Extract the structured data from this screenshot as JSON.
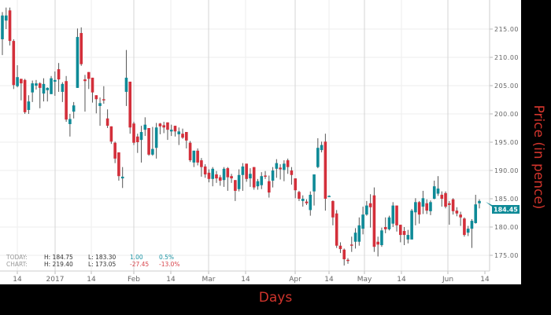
{
  "chart_data": {
    "type": "candlestick",
    "xlabel": "Days",
    "ylabel": "Price (in pence)",
    "ylim": [
      172,
      219
    ],
    "yticks": [
      "215.00",
      "210.00",
      "205.00",
      "200.00",
      "195.00",
      "190.00",
      "185.00",
      "180.00",
      "175.00"
    ],
    "xticks": [
      "14",
      "2017",
      "14",
      "Feb",
      "14",
      "Mar",
      "14",
      "Apr",
      "14",
      "May",
      "14",
      "Jun",
      "14"
    ],
    "grid": true,
    "colors": {
      "up": "#0e8a97",
      "down": "#d32f3a",
      "wick": "#555555",
      "axis_title": "#d0342c"
    },
    "last_price": "184.45",
    "candles_ohlc": [
      [
        213.2,
        218,
        210.4,
        217.4
      ],
      [
        216.5,
        218.8,
        215,
        217.4
      ],
      [
        218.3,
        218.8,
        212.1,
        212.9
      ],
      [
        212.9,
        213.2,
        204.4,
        205.1
      ],
      [
        204.9,
        208.6,
        204.7,
        206.5
      ],
      [
        206.2,
        206.2,
        202.4,
        205.4
      ],
      [
        206.0,
        206.2,
        200.0,
        200.3
      ],
      [
        200.7,
        203.3,
        200,
        202.2
      ],
      [
        203.8,
        205.9,
        202.1,
        205.4
      ],
      [
        205.0,
        206,
        204.3,
        205.4
      ],
      [
        205.4,
        205.6,
        201,
        204.6
      ],
      [
        203.6,
        206.3,
        202.2,
        205.3
      ],
      [
        204.2,
        204.7,
        202.2,
        204.6
      ],
      [
        203.5,
        206.7,
        203.5,
        206.3
      ],
      [
        205.7,
        207.5,
        203.2,
        206.0
      ],
      [
        207.9,
        209.0,
        203.9,
        206.1
      ],
      [
        203.9,
        205.6,
        202.1,
        205.3
      ],
      [
        205.8,
        206.7,
        198.6,
        199.0
      ],
      [
        198.2,
        200,
        196,
        199.1
      ],
      [
        200.4,
        202.1,
        199.2,
        201.5
      ],
      [
        204.6,
        215.1,
        204.6,
        213.6
      ],
      [
        214.3,
        215.3,
        208.5,
        208.8
      ],
      [
        206.1,
        206.9,
        200.4,
        205.8
      ],
      [
        207.4,
        207.4,
        204.4,
        206.2
      ],
      [
        206.4,
        206.4,
        202.0,
        203.8
      ],
      [
        203.3,
        203.3,
        200.1,
        202.6
      ],
      [
        201.4,
        202.9,
        197.9,
        201.9
      ],
      [
        202.6,
        204.9,
        201.8,
        202.4
      ],
      [
        199.2,
        200.8,
        197.5,
        197.9
      ],
      [
        197.8,
        197.8,
        194.7,
        195.1
      ],
      [
        194.9,
        195.1,
        191.3,
        192.1
      ],
      [
        193.2,
        193.2,
        188.2,
        189.0
      ],
      [
        188.6,
        190.6,
        186.9,
        188.9
      ],
      [
        203.9,
        211.3,
        201.4,
        206.4
      ],
      [
        205.7,
        205.7,
        196.5,
        197.6
      ],
      [
        198.3,
        198.6,
        194.5,
        194.9
      ],
      [
        196.0,
        196.5,
        193.1,
        195.0
      ],
      [
        195.4,
        197.9,
        191.4,
        196.8
      ],
      [
        197.2,
        199.4,
        196.1,
        198.1
      ],
      [
        197.5,
        197.5,
        192.6,
        192.8
      ],
      [
        192.8,
        197.7,
        192.6,
        193.8
      ],
      [
        194.0,
        198.4,
        192.1,
        197.6
      ],
      [
        198.3,
        198.4,
        196.4,
        197.8
      ],
      [
        198.0,
        198.6,
        196.6,
        197.6
      ],
      [
        198.5,
        198.5,
        195.4,
        197.2
      ],
      [
        196.9,
        198.1,
        196.1,
        197.2
      ],
      [
        197.9,
        197.9,
        196.0,
        196.9
      ],
      [
        196.4,
        197.6,
        194.5,
        196.9
      ],
      [
        196.5,
        197.4,
        195.6,
        195.8
      ],
      [
        196.8,
        196.8,
        193.9,
        195.3
      ],
      [
        194.9,
        195.2,
        191.5,
        191.8
      ],
      [
        191.4,
        193.5,
        190.6,
        193.5
      ],
      [
        193.5,
        193.9,
        190.9,
        191.4
      ],
      [
        191.8,
        192.2,
        188.9,
        190.6
      ],
      [
        190.7,
        191.1,
        188.7,
        189.3
      ],
      [
        189.6,
        190.2,
        187.9,
        188.5
      ],
      [
        188.5,
        190.6,
        187.2,
        190.3
      ],
      [
        189.3,
        189.9,
        187.8,
        188.6
      ],
      [
        188.8,
        189.2,
        187.3,
        188.2
      ],
      [
        188.3,
        190.6,
        187.1,
        190.3
      ],
      [
        190.4,
        190.6,
        186.4,
        188.8
      ],
      [
        189.0,
        189.4,
        187.8,
        188.6
      ],
      [
        188.3,
        188.3,
        184.6,
        186.4
      ],
      [
        186.7,
        190.2,
        186.3,
        189.2
      ],
      [
        189.2,
        191.3,
        186.4,
        190.7
      ],
      [
        191.2,
        191.2,
        188.0,
        188.5
      ],
      [
        188.6,
        190.4,
        187.1,
        189.4
      ],
      [
        190.6,
        190.6,
        186.6,
        187.0
      ],
      [
        187.2,
        188.5,
        186.6,
        188.1
      ],
      [
        187.4,
        189.7,
        186.7,
        189.0
      ],
      [
        189.1,
        189.9,
        188.5,
        189.0
      ],
      [
        188.1,
        189.1,
        185.2,
        186.1
      ],
      [
        188.2,
        190.6,
        187.0,
        190.0
      ],
      [
        190.3,
        192.0,
        188.7,
        191.3
      ],
      [
        190.5,
        191.1,
        188.4,
        190.2
      ],
      [
        190.1,
        191.8,
        188.1,
        191.2
      ],
      [
        191.8,
        192.1,
        189.4,
        190.6
      ],
      [
        190.0,
        190.6,
        187.5,
        189.2
      ],
      [
        188.6,
        188.6,
        185.1,
        186.5
      ],
      [
        186.2,
        186.4,
        184.6,
        185.0
      ],
      [
        184.6,
        185.6,
        183.6,
        185.0
      ],
      [
        184.5,
        184.9,
        183.9,
        184.2
      ],
      [
        183.0,
        186.3,
        182.0,
        185.7
      ],
      [
        186.3,
        189.3,
        183.8,
        189.3
      ],
      [
        190.6,
        195.7,
        190.4,
        194.0
      ],
      [
        193.6,
        195.1,
        193.2,
        194.5
      ],
      [
        195.1,
        196.5,
        182.9,
        185.0
      ],
      [
        185.5,
        185.6,
        185.4,
        185.5
      ],
      [
        184.6,
        184.7,
        180.3,
        181.7
      ],
      [
        182.4,
        183.0,
        176.3,
        176.7
      ],
      [
        176.7,
        177.3,
        175.4,
        176.1
      ],
      [
        176.0,
        176.2,
        173.2,
        174.3
      ],
      [
        174.2,
        174.5,
        173.5,
        174.0
      ],
      [
        176.9,
        178.3,
        175.6,
        176.8
      ],
      [
        177.4,
        179.8,
        176.2,
        179.0
      ],
      [
        177.4,
        181.7,
        176.7,
        180.3
      ],
      [
        179.7,
        183.6,
        178.7,
        182.2
      ],
      [
        182.2,
        184.6,
        182.0,
        183.8
      ],
      [
        184.2,
        185.8,
        179.9,
        183.5
      ],
      [
        185.6,
        187.0,
        175.6,
        176.5
      ],
      [
        177.4,
        178.3,
        174.8,
        176.9
      ],
      [
        176.8,
        179.9,
        176.5,
        179.4
      ],
      [
        180.0,
        181.7,
        178.9,
        179.6
      ],
      [
        179.6,
        182.0,
        179.4,
        181.7
      ],
      [
        180.6,
        184.4,
        180.0,
        183.8
      ],
      [
        183.8,
        183.8,
        179.2,
        180.3
      ],
      [
        180.4,
        180.4,
        177.3,
        178.6
      ],
      [
        179.3,
        180.0,
        176.8,
        178.6
      ],
      [
        177.8,
        179.5,
        177.1,
        178.6
      ],
      [
        177.8,
        183.2,
        177.8,
        182.9
      ],
      [
        182.6,
        185.1,
        180.3,
        184.4
      ],
      [
        184.4,
        184.6,
        180.6,
        182.2
      ],
      [
        183.6,
        186.4,
        182.3,
        185.1
      ],
      [
        184.2,
        184.9,
        182.3,
        182.9
      ],
      [
        182.8,
        184.7,
        182.1,
        184.4
      ],
      [
        185.0,
        188.2,
        184.9,
        187.2
      ],
      [
        185.9,
        189.0,
        185.5,
        186.8
      ],
      [
        185.7,
        186.3,
        183.6,
        185.0
      ],
      [
        186.0,
        186.3,
        183.3,
        183.6
      ],
      [
        184.2,
        184.6,
        180.4,
        183.9
      ],
      [
        184.9,
        185.1,
        182.2,
        182.8
      ],
      [
        182.9,
        183.5,
        181.9,
        182.4
      ],
      [
        182.2,
        182.7,
        180.2,
        181.7
      ],
      [
        181.5,
        181.7,
        178.3,
        178.6
      ],
      [
        179.0,
        180.2,
        178.4,
        179.7
      ],
      [
        179.7,
        181.4,
        176.3,
        181.1
      ],
      [
        180.7,
        185.7,
        180.6,
        184.0
      ],
      [
        184.2,
        184.9,
        183.3,
        184.6
      ]
    ]
  },
  "stats": {
    "today_label": "TODAY:",
    "today_high": "H: 184.75",
    "today_low": "L: 183.30",
    "today_change": "1.00",
    "today_pct": "0.5%",
    "chart_label": "CHART:",
    "chart_high": "H: 219.40",
    "chart_low": "L: 173.05",
    "chart_change": "-27.45",
    "chart_pct": "-13.0%"
  }
}
